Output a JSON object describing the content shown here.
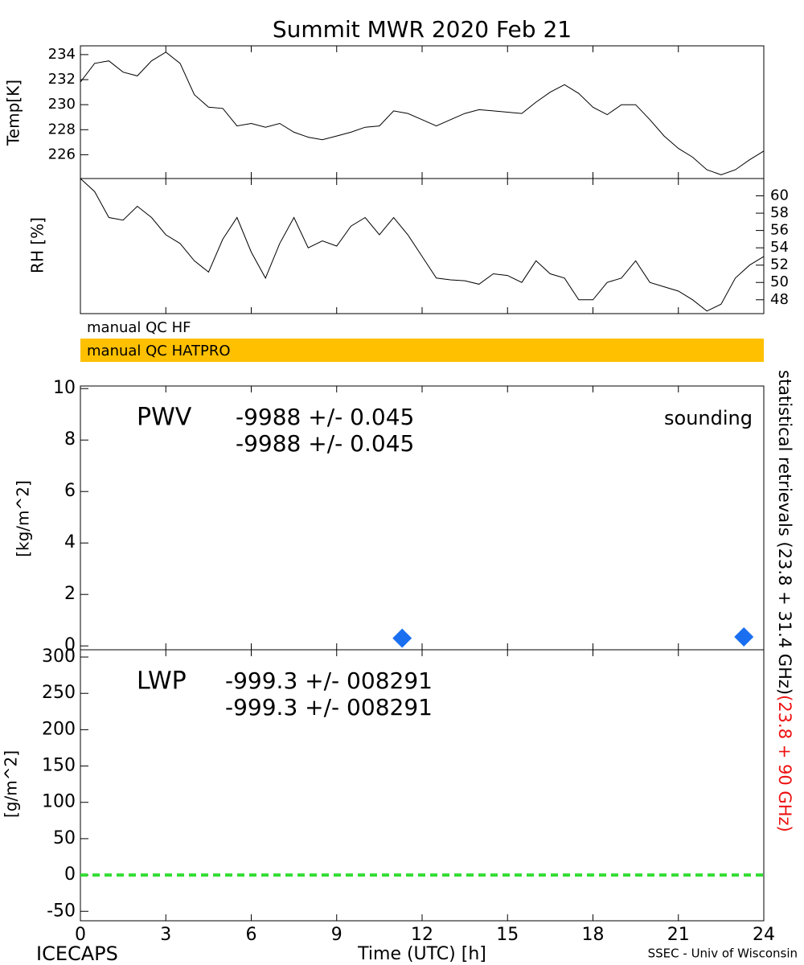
{
  "chart_data": [
    {
      "type": "line",
      "title": "Summit MWR 2020 Feb 21",
      "ylabel": "Temp[K]",
      "color": "#000000",
      "yaxis_side": "left",
      "x": [
        0,
        0.5,
        1,
        1.5,
        2,
        2.5,
        3,
        3.5,
        4,
        4.5,
        5,
        5.5,
        6,
        6.5,
        7,
        7.5,
        8,
        8.5,
        9,
        9.5,
        10,
        10.5,
        11,
        11.5,
        12,
        12.5,
        13,
        13.5,
        14,
        14.5,
        15,
        15.5,
        16,
        16.5,
        17,
        17.5,
        18,
        18.5,
        19,
        19.5,
        20,
        20.5,
        21,
        21.5,
        22,
        22.5,
        23,
        23.5,
        24
      ],
      "values": [
        231.8,
        233.3,
        233.5,
        232.6,
        232.3,
        233.5,
        234.2,
        233.3,
        230.8,
        229.8,
        229.7,
        228.3,
        228.5,
        228.2,
        228.5,
        227.8,
        227.4,
        227.2,
        227.5,
        227.8,
        228.2,
        228.3,
        229.5,
        229.3,
        228.8,
        228.3,
        228.8,
        229.3,
        229.6,
        229.5,
        229.4,
        229.3,
        230.2,
        231.0,
        231.6,
        230.9,
        229.8,
        229.2,
        230.0,
        230.0,
        228.8,
        227.5,
        226.5,
        225.8,
        224.8,
        224.4,
        224.8,
        225.6,
        226.3
      ],
      "xlim": [
        0,
        24
      ],
      "ylim": [
        224.1,
        234.7
      ],
      "yticks": [
        226,
        228,
        230,
        232,
        234
      ]
    },
    {
      "type": "line",
      "ylabel": "RH [%]",
      "color": "#000000",
      "yaxis_side": "right",
      "x": [
        0,
        0.5,
        1,
        1.5,
        2,
        2.5,
        3,
        3.5,
        4,
        4.5,
        5,
        5.5,
        6,
        6.5,
        7,
        7.5,
        8,
        8.5,
        9,
        9.5,
        10,
        10.5,
        11,
        11.5,
        12,
        12.5,
        13,
        13.5,
        14,
        14.5,
        15,
        15.5,
        16,
        16.5,
        17,
        17.5,
        18,
        18.5,
        19,
        19.5,
        20,
        20.5,
        21,
        21.5,
        22,
        22.5,
        23,
        23.5,
        24
      ],
      "values": [
        62,
        60.5,
        57.5,
        57.2,
        58.8,
        57.5,
        55.5,
        54.5,
        52.5,
        51.2,
        55,
        57.5,
        53.5,
        50.5,
        54.5,
        57.5,
        54,
        54.8,
        54.2,
        56.5,
        57.5,
        55.5,
        57.5,
        55.5,
        53,
        50.5,
        50.3,
        50.2,
        49.8,
        51,
        50.8,
        50,
        52.5,
        51,
        50.5,
        48,
        48,
        50,
        50.5,
        52.5,
        50,
        49.5,
        49,
        48,
        46.7,
        47.5,
        50.5,
        52,
        53
      ],
      "xlim": [
        0,
        24
      ],
      "ylim": [
        46.4,
        62.0
      ],
      "yticks": [
        48,
        50,
        52,
        54,
        56,
        58,
        60
      ]
    },
    {
      "type": "flags",
      "labels": [
        "manual QC HF",
        "manual QC HATPRO"
      ],
      "colors": [
        "#ffffff",
        "#ffc000"
      ]
    },
    {
      "type": "scatter",
      "ylabel": "[kg/m^2]",
      "label": "PWV",
      "stats": [
        {
          "text": "-9988 +/- 0.045",
          "color": "#000000"
        },
        {
          "text": "-9988 +/- 0.045",
          "color": "#ee1111"
        }
      ],
      "series": [
        {
          "name": "sounding",
          "color": "#1a6ff0",
          "x": [
            11.3,
            23.3
          ],
          "values": [
            0.3,
            0.35
          ]
        }
      ],
      "xlim": [
        0,
        24
      ],
      "ylim": [
        -0.15,
        10.1
      ],
      "yticks": [
        0,
        2,
        4,
        6,
        8,
        10
      ]
    },
    {
      "type": "reference",
      "ylabel": "[g/m^2]",
      "label": "LWP",
      "stats": [
        {
          "text": "-999.3 +/- 008291",
          "color": "#000000"
        },
        {
          "text": "-999.3 +/- 008291",
          "color": "#ee1111"
        }
      ],
      "hline": 0,
      "hline_color": "#33dd33",
      "xlim": [
        0,
        24
      ],
      "ylim": [
        -63,
        310
      ],
      "yticks": [
        -50,
        0,
        50,
        100,
        150,
        200,
        250,
        300
      ],
      "xticks": [
        0,
        3,
        6,
        9,
        12,
        15,
        18,
        21,
        24
      ],
      "xlabel": "Time (UTC) [h]",
      "footer_left": "ICECAPS",
      "footer_right": "SSEC - Univ of Wisconsin"
    }
  ],
  "side_labels": [
    {
      "text": "statistical retrievals (23.8 + 31.4 GHz)",
      "color": "#000000"
    },
    {
      "text": "(23.8 + 90 GHz)",
      "color": "#ee1111"
    }
  ]
}
